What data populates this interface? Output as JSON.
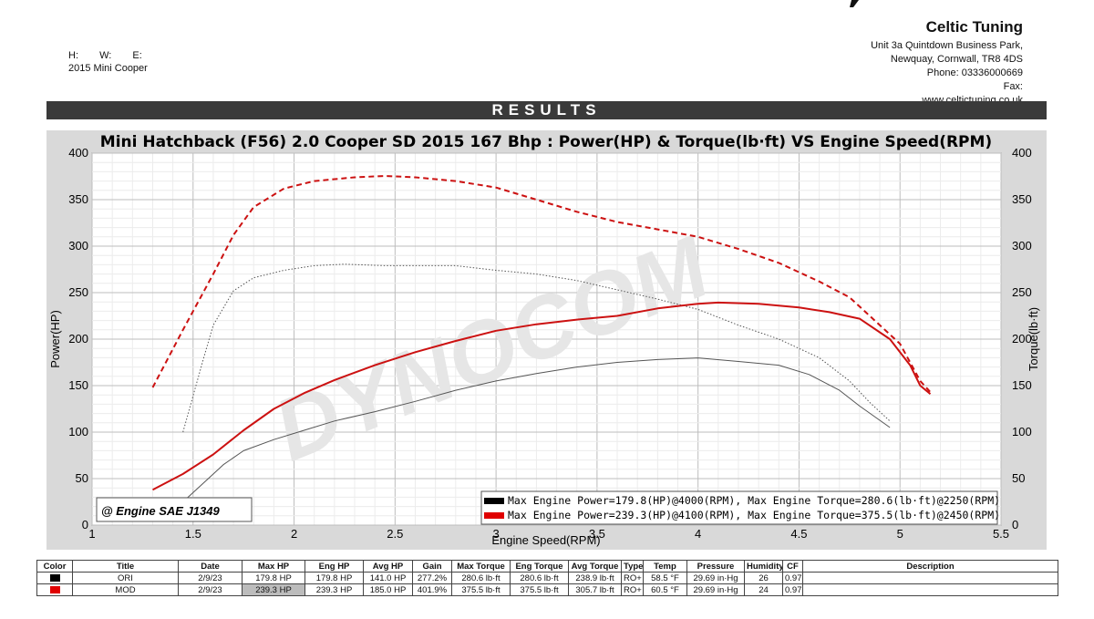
{
  "header": {
    "company": "Celtic Tuning",
    "address": [
      "Unit 3a Quintdown Business Park,",
      "Newquay, Cornwall, TR8 4DS",
      "Phone: 03336000669",
      "Fax:",
      "www.celtictuning.co.uk"
    ],
    "h_label": "H:",
    "w_label": "W:",
    "e_label": "E:",
    "vehicle": "2015 Mini Cooper"
  },
  "results_label": "RESULTS",
  "chart_data": {
    "type": "line",
    "title": "Mini Hatchback (F56) 2.0 Cooper SD 2015 167 Bhp : Power(HP) & Torque(lb·ft) VS Engine Speed(RPM)",
    "xlabel": "Engine Speed(RPM)",
    "ylabel_left": "Power(HP)",
    "ylabel_right": "Torque(lb·ft)",
    "xlim": [
      1,
      5.5
    ],
    "ylim": [
      0,
      400
    ],
    "xticks": [
      "1",
      "1.5",
      "2",
      "2.5",
      "3",
      "3.5",
      "4",
      "4.5",
      "5",
      "5.5"
    ],
    "yticks": [
      "0",
      "50",
      "100",
      "150",
      "200",
      "250",
      "300",
      "350",
      "400"
    ],
    "grid": true,
    "watermark": "DYNOCOM",
    "standard_label": "@ Engine SAE J1349",
    "legend": [
      {
        "color": "#000000",
        "text": "Max Engine Power=179.8(HP)@4000(RPM), Max Engine Torque=280.6(lb·ft)@2250(RPM)"
      },
      {
        "color": "#e00000",
        "text": "Max Engine Power=239.3(HP)@4100(RPM), Max Engine Torque=375.5(lb·ft)@2450(RPM)"
      }
    ],
    "series": [
      {
        "run": "ORI",
        "measure": "power",
        "color": "#555555",
        "style": "solid",
        "width": 1,
        "x": [
          1.45,
          1.55,
          1.65,
          1.75,
          1.9,
          2.05,
          2.2,
          2.4,
          2.6,
          2.8,
          3.0,
          3.2,
          3.4,
          3.6,
          3.8,
          4.0,
          4.2,
          4.4,
          4.55,
          4.7,
          4.8,
          4.95
        ],
        "y": [
          25,
          45,
          65,
          80,
          92,
          102,
          112,
          122,
          133,
          145,
          155,
          163,
          170,
          175,
          178,
          179.8,
          176,
          172,
          162,
          145,
          128,
          105
        ]
      },
      {
        "run": "ORI",
        "measure": "torque",
        "color": "#555555",
        "style": "dotted",
        "width": 1,
        "x": [
          1.45,
          1.55,
          1.6,
          1.7,
          1.8,
          1.95,
          2.1,
          2.25,
          2.45,
          2.65,
          2.8,
          3.0,
          3.2,
          3.4,
          3.6,
          3.8,
          4.0,
          4.2,
          4.4,
          4.6,
          4.75,
          4.85,
          4.95
        ],
        "y": [
          100,
          178,
          215,
          252,
          266,
          274,
          279,
          280.6,
          279,
          279,
          279,
          274,
          270,
          263,
          253,
          243,
          232,
          215,
          200,
          180,
          155,
          132,
          112
        ]
      },
      {
        "run": "MOD",
        "measure": "power",
        "color": "#cc1111",
        "style": "solid",
        "width": 2,
        "x": [
          1.3,
          1.45,
          1.6,
          1.75,
          1.9,
          2.05,
          2.2,
          2.4,
          2.6,
          2.8,
          3.0,
          3.2,
          3.4,
          3.6,
          3.8,
          4.0,
          4.1,
          4.3,
          4.5,
          4.65,
          4.8,
          4.95,
          5.05,
          5.1,
          5.15
        ],
        "y": [
          38,
          55,
          76,
          102,
          125,
          142,
          156,
          172,
          186,
          198,
          209,
          216,
          221,
          225,
          233,
          238,
          239.3,
          238,
          234,
          229,
          222,
          200,
          172,
          150,
          141
        ]
      },
      {
        "run": "MOD",
        "measure": "torque",
        "color": "#cc1111",
        "style": "dashed",
        "width": 2,
        "x": [
          1.3,
          1.45,
          1.6,
          1.7,
          1.8,
          1.95,
          2.1,
          2.3,
          2.45,
          2.6,
          2.8,
          3.0,
          3.2,
          3.4,
          3.6,
          3.8,
          4.0,
          4.2,
          4.4,
          4.6,
          4.75,
          4.85,
          5.0,
          5.1,
          5.15
        ],
        "y": [
          148,
          210,
          270,
          312,
          342,
          362,
          370,
          374,
          375.5,
          374,
          370,
          363,
          350,
          337,
          326,
          318,
          310,
          297,
          282,
          262,
          245,
          225,
          195,
          155,
          143
        ]
      }
    ]
  },
  "table": {
    "headers": [
      "Color",
      "Title",
      "Date",
      "Max HP",
      "Eng HP",
      "Avg HP",
      "Gain",
      "Max Torque",
      "Eng Torque",
      "Avg Torque",
      "Type",
      "Temp",
      "Pressure",
      "Humidity",
      "CF",
      "Description"
    ],
    "rows": [
      {
        "color": "#000000",
        "cells": [
          "ORI",
          "2/9/23",
          "179.8 HP",
          "179.8 HP",
          "141.0 HP",
          "277.2%",
          "280.6 lb·ft",
          "280.6 lb·ft",
          "238.9 lb·ft",
          "RO+",
          "58.5 °F",
          "29.69 in·Hg",
          "26",
          "0.97",
          ""
        ]
      },
      {
        "color": "#e00000",
        "cells": [
          "MOD",
          "2/9/23",
          "239.3 HP",
          "239.3 HP",
          "185.0 HP",
          "401.9%",
          "375.5 lb·ft",
          "375.5 lb·ft",
          "305.7 lb·ft",
          "RO+",
          "60.5 °F",
          "29.69 in·Hg",
          "24",
          "0.97",
          ""
        ]
      }
    ]
  }
}
